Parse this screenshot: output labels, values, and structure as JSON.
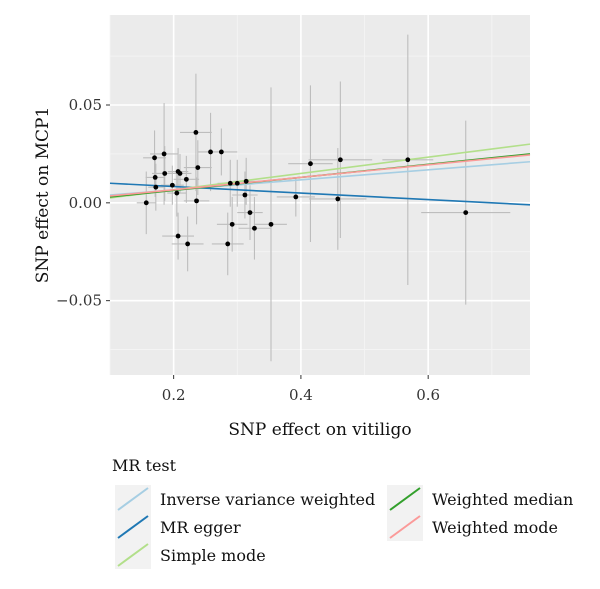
{
  "chart_data": {
    "type": "scatter",
    "xlabel": "SNP effect on vitiligo",
    "ylabel": "SNP effect on MCP1",
    "xlim": [
      0.1,
      0.76
    ],
    "ylim": [
      -0.088,
      0.096
    ],
    "x_ticks": [
      0.2,
      0.4,
      0.6
    ],
    "x_tick_labels": [
      "0.2",
      "0.4",
      "0.6"
    ],
    "y_ticks": [
      -0.05,
      0.0,
      0.05
    ],
    "y_tick_labels": [
      "−0.05",
      "0.00",
      "0.05"
    ],
    "grid": true,
    "legend_position": "bottom",
    "legend_title": "MR test",
    "points": [
      {
        "x": 0.157,
        "y": 0.0,
        "xerr": 0.015,
        "yerr": 0.016
      },
      {
        "x": 0.17,
        "y": 0.023,
        "xerr": 0.018,
        "yerr": 0.014
      },
      {
        "x": 0.171,
        "y": 0.013,
        "xerr": 0.015,
        "yerr": 0.01
      },
      {
        "x": 0.172,
        "y": 0.008,
        "xerr": 0.012,
        "yerr": 0.012
      },
      {
        "x": 0.185,
        "y": 0.025,
        "xerr": 0.022,
        "yerr": 0.026
      },
      {
        "x": 0.186,
        "y": 0.015,
        "xerr": 0.02,
        "yerr": 0.014
      },
      {
        "x": 0.198,
        "y": 0.009,
        "xerr": 0.018,
        "yerr": 0.01
      },
      {
        "x": 0.205,
        "y": 0.005,
        "xerr": 0.015,
        "yerr": 0.012
      },
      {
        "x": 0.207,
        "y": 0.016,
        "xerr": 0.016,
        "yerr": 0.012
      },
      {
        "x": 0.21,
        "y": 0.015,
        "xerr": 0.018,
        "yerr": 0.01
      },
      {
        "x": 0.207,
        "y": -0.017,
        "xerr": 0.025,
        "yerr": 0.012
      },
      {
        "x": 0.22,
        "y": 0.012,
        "xerr": 0.02,
        "yerr": 0.012
      },
      {
        "x": 0.222,
        "y": -0.021,
        "xerr": 0.025,
        "yerr": 0.014
      },
      {
        "x": 0.235,
        "y": 0.036,
        "xerr": 0.025,
        "yerr": 0.03
      },
      {
        "x": 0.236,
        "y": 0.001,
        "xerr": 0.02,
        "yerr": 0.012
      },
      {
        "x": 0.238,
        "y": 0.018,
        "xerr": 0.022,
        "yerr": 0.014
      },
      {
        "x": 0.258,
        "y": 0.026,
        "xerr": 0.02,
        "yerr": 0.02
      },
      {
        "x": 0.275,
        "y": 0.026,
        "xerr": 0.025,
        "yerr": 0.012
      },
      {
        "x": 0.285,
        "y": -0.021,
        "xerr": 0.025,
        "yerr": 0.016
      },
      {
        "x": 0.289,
        "y": 0.01,
        "xerr": 0.02,
        "yerr": 0.012
      },
      {
        "x": 0.292,
        "y": -0.011,
        "xerr": 0.024,
        "yerr": 0.014
      },
      {
        "x": 0.3,
        "y": 0.01,
        "xerr": 0.02,
        "yerr": 0.012
      },
      {
        "x": 0.312,
        "y": 0.004,
        "xerr": 0.02,
        "yerr": 0.012
      },
      {
        "x": 0.314,
        "y": 0.011,
        "xerr": 0.02,
        "yerr": 0.012
      },
      {
        "x": 0.32,
        "y": -0.005,
        "xerr": 0.02,
        "yerr": 0.014
      },
      {
        "x": 0.327,
        "y": -0.013,
        "xerr": 0.025,
        "yerr": 0.016
      },
      {
        "x": 0.353,
        "y": -0.011,
        "xerr": 0.025,
        "yerr": 0.07
      },
      {
        "x": 0.392,
        "y": 0.003,
        "xerr": 0.03,
        "yerr": 0.01
      },
      {
        "x": 0.415,
        "y": 0.02,
        "xerr": 0.035,
        "yerr": 0.04
      },
      {
        "x": 0.458,
        "y": 0.002,
        "xerr": 0.045,
        "yerr": 0.026
      },
      {
        "x": 0.462,
        "y": 0.022,
        "xerr": 0.05,
        "yerr": 0.04
      },
      {
        "x": 0.568,
        "y": 0.022,
        "xerr": 0.04,
        "yerr": 0.064
      },
      {
        "x": 0.659,
        "y": -0.005,
        "xerr": 0.07,
        "yerr": 0.047
      }
    ],
    "series": [
      {
        "name": "Inverse variance weighted",
        "color": "#a6cee3",
        "x": [
          0.1,
          0.76
        ],
        "y": [
          0.004,
          0.021
        ]
      },
      {
        "name": "MR egger",
        "color": "#1f78b4",
        "x": [
          0.1,
          0.76
        ],
        "y": [
          0.01,
          -0.001
        ]
      },
      {
        "name": "Simple mode",
        "color": "#b2df8a",
        "x": [
          0.1,
          0.76
        ],
        "y": [
          0.0025,
          0.03
        ]
      },
      {
        "name": "Weighted median",
        "color": "#33a02c",
        "x": [
          0.1,
          0.76
        ],
        "y": [
          0.003,
          0.025
        ]
      },
      {
        "name": "Weighted mode",
        "color": "#fb9a99",
        "x": [
          0.1,
          0.76
        ],
        "y": [
          0.0035,
          0.0245
        ]
      }
    ]
  }
}
